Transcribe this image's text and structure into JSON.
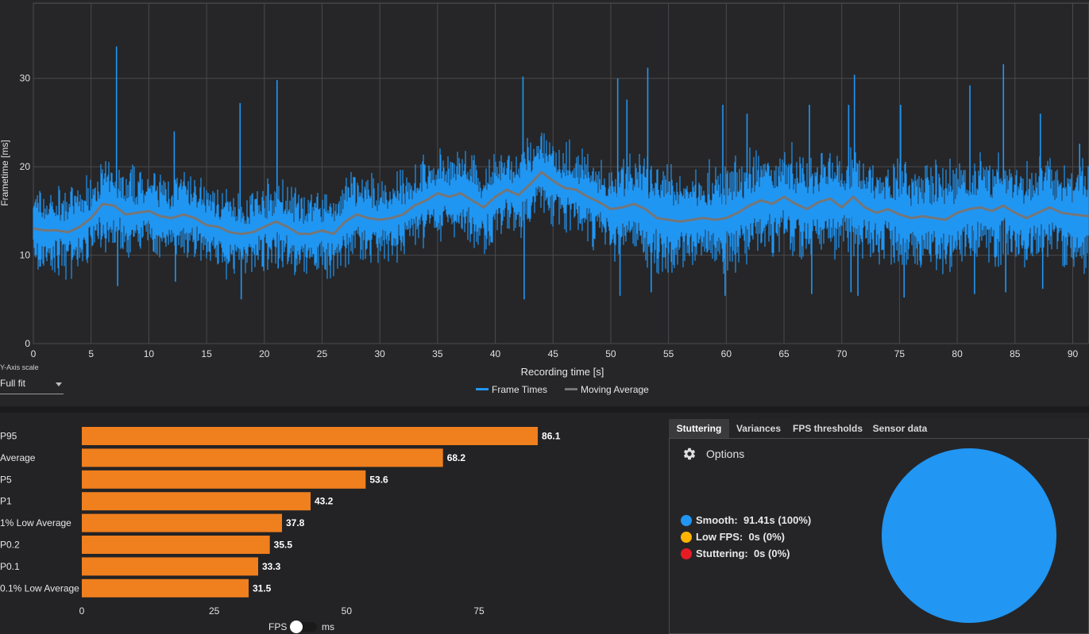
{
  "frametime_chart": {
    "type": "line",
    "ylabel": "Frametime [ms]",
    "xlabel": "Recording time [s]",
    "xlim": [
      0,
      91.41
    ],
    "ylim": [
      0,
      38.5
    ],
    "x_ticks": [
      0,
      5,
      10,
      15,
      20,
      25,
      30,
      35,
      40,
      45,
      50,
      55,
      60,
      65,
      70,
      75,
      80,
      85,
      90
    ],
    "y_ticks": [
      0,
      10,
      20,
      30
    ],
    "grid": true,
    "legend_placement": "bottom-center",
    "series": [
      {
        "name": "Frame Times",
        "color": "#2196F3"
      },
      {
        "name": "Moving Average",
        "color": "#767676"
      }
    ],
    "moving_average_points": [
      [
        0,
        13.0
      ],
      [
        1,
        12.8
      ],
      [
        2,
        12.8
      ],
      [
        3,
        12.6
      ],
      [
        4,
        13.2
      ],
      [
        5,
        14.2
      ],
      [
        6,
        15.8
      ],
      [
        7,
        15.6
      ],
      [
        8,
        14.6
      ],
      [
        9,
        14.8
      ],
      [
        10,
        15.0
      ],
      [
        11,
        14.4
      ],
      [
        12,
        14.2
      ],
      [
        13,
        14.6
      ],
      [
        14,
        14.2
      ],
      [
        15,
        13.4
      ],
      [
        16,
        13.2
      ],
      [
        17,
        12.6
      ],
      [
        18,
        12.4
      ],
      [
        19,
        12.6
      ],
      [
        20,
        13.2
      ],
      [
        21,
        13.8
      ],
      [
        22,
        13.2
      ],
      [
        23,
        12.4
      ],
      [
        24,
        12.4
      ],
      [
        25,
        12.8
      ],
      [
        26,
        12.4
      ],
      [
        27,
        13.8
      ],
      [
        28,
        14.6
      ],
      [
        29,
        14.2
      ],
      [
        30,
        14.0
      ],
      [
        31,
        14.2
      ],
      [
        32,
        14.6
      ],
      [
        33,
        15.6
      ],
      [
        34,
        16.2
      ],
      [
        35,
        17.0
      ],
      [
        36,
        16.6
      ],
      [
        37,
        17.0
      ],
      [
        38,
        16.2
      ],
      [
        39,
        15.4
      ],
      [
        40,
        16.6
      ],
      [
        41,
        17.4
      ],
      [
        42,
        16.8
      ],
      [
        43,
        18.0
      ],
      [
        44,
        19.4
      ],
      [
        45,
        18.4
      ],
      [
        46,
        17.6
      ],
      [
        47,
        17.4
      ],
      [
        48,
        16.6
      ],
      [
        49,
        16.0
      ],
      [
        50,
        15.2
      ],
      [
        51,
        15.4
      ],
      [
        52,
        15.8
      ],
      [
        53,
        15.2
      ],
      [
        54,
        14.2
      ],
      [
        55,
        14.0
      ],
      [
        56,
        13.8
      ],
      [
        57,
        14.0
      ],
      [
        58,
        14.2
      ],
      [
        59,
        14.0
      ],
      [
        60,
        14.2
      ],
      [
        61,
        14.8
      ],
      [
        62,
        15.6
      ],
      [
        63,
        16.2
      ],
      [
        64,
        15.8
      ],
      [
        65,
        16.6
      ],
      [
        66,
        15.8
      ],
      [
        67,
        15.2
      ],
      [
        68,
        16.0
      ],
      [
        69,
        16.4
      ],
      [
        70,
        15.4
      ],
      [
        71,
        16.6
      ],
      [
        72,
        15.4
      ],
      [
        73,
        14.8
      ],
      [
        74,
        15.2
      ],
      [
        75,
        14.6
      ],
      [
        76,
        14.2
      ],
      [
        77,
        14.4
      ],
      [
        78,
        14.2
      ],
      [
        79,
        14.0
      ],
      [
        80,
        14.8
      ],
      [
        81,
        15.2
      ],
      [
        82,
        15.4
      ],
      [
        83,
        15.0
      ],
      [
        84,
        15.6
      ],
      [
        85,
        14.8
      ],
      [
        86,
        14.2
      ],
      [
        87,
        14.8
      ],
      [
        88,
        15.4
      ],
      [
        89,
        14.8
      ],
      [
        90,
        14.6
      ],
      [
        91.41,
        14.4
      ]
    ],
    "frame_time_spikes": [
      [
        7.2,
        33.6
      ],
      [
        7.3,
        6.5
      ],
      [
        12.2,
        24.0
      ],
      [
        12.3,
        7.0
      ],
      [
        17.9,
        27.2
      ],
      [
        18.0,
        5.0
      ],
      [
        21.1,
        29.8
      ],
      [
        21.2,
        8.5
      ],
      [
        42.4,
        30.2
      ],
      [
        42.5,
        5.0
      ],
      [
        50.6,
        30.0
      ],
      [
        50.8,
        5.4
      ],
      [
        51.4,
        27.6
      ],
      [
        53.2,
        31.2
      ],
      [
        53.5,
        5.8
      ],
      [
        59.7,
        27.0
      ],
      [
        59.9,
        5.4
      ],
      [
        61.8,
        26.0
      ],
      [
        67.2,
        27.0
      ],
      [
        67.4,
        5.6
      ],
      [
        70.6,
        27.0
      ],
      [
        70.8,
        5.8
      ],
      [
        71.1,
        30.4
      ],
      [
        71.4,
        5.4
      ],
      [
        75.1,
        27.0
      ],
      [
        75.4,
        5.2
      ],
      [
        81.1,
        29.2
      ],
      [
        81.5,
        5.6
      ],
      [
        84.0,
        31.6
      ],
      [
        84.2,
        5.8
      ],
      [
        87.2,
        26.0
      ],
      [
        87.4,
        6.2
      ],
      [
        90.6,
        22.6
      ]
    ]
  },
  "y_axis_scale": {
    "label": "Y-Axis scale",
    "value": "Full fit"
  },
  "stats_chart": {
    "type": "bar",
    "orientation": "horizontal",
    "categories": [
      "P95",
      "Average",
      "P5",
      "P1",
      "1% Low Average",
      "P0.2",
      "P0.1",
      "0.1% Low Average"
    ],
    "values": [
      86.1,
      68.2,
      53.6,
      43.2,
      37.8,
      35.5,
      33.3,
      31.5
    ],
    "value_labels": [
      "86.1",
      "68.2",
      "53.6",
      "43.2",
      "37.8",
      "35.5",
      "33.3",
      "31.5"
    ],
    "x_ticks": [
      0,
      25,
      50,
      75
    ],
    "xlim": [
      0,
      100
    ],
    "bar_color": "#F07F1E"
  },
  "unit_toggle": {
    "left_label": "FPS",
    "right_label": "ms",
    "selected": "FPS"
  },
  "tabs": [
    {
      "label": "Stuttering",
      "active": true
    },
    {
      "label": "Variances",
      "active": false
    },
    {
      "label": "FPS thresholds",
      "active": false
    },
    {
      "label": "Sensor data",
      "active": false
    }
  ],
  "stuttering": {
    "options_label": "Options",
    "legend": [
      {
        "label": "Smooth:",
        "value": "91.41s (100%)",
        "color": "#2196F3"
      },
      {
        "label": "Low FPS:",
        "value": "0s (0%)",
        "color": "#FFB300"
      },
      {
        "label": "Stuttering:",
        "value": "0s (0%)",
        "color": "#E51C23"
      }
    ],
    "chart_data": {
      "type": "pie",
      "categories": [
        "Smooth",
        "Low FPS",
        "Stuttering"
      ],
      "values": [
        100,
        0,
        0
      ],
      "colors": [
        "#2196F3",
        "#FFB300",
        "#E51C23"
      ]
    }
  }
}
